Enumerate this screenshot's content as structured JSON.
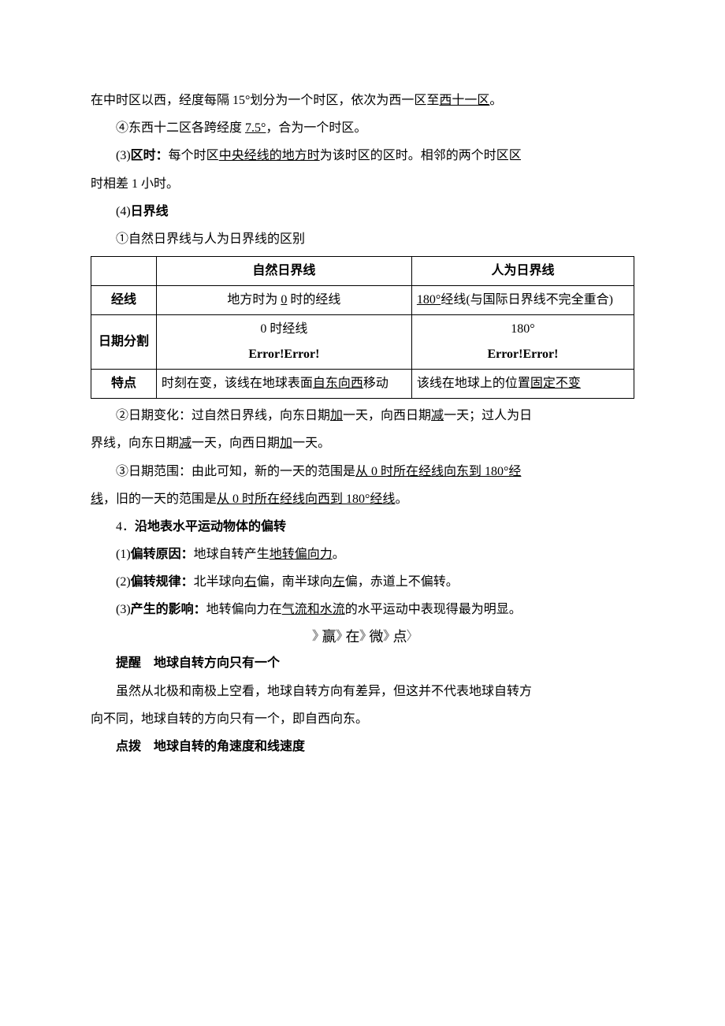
{
  "p1": {
    "pre": "在中时区以西，经度每隔 15°划分为一个时区，依次为西一区至",
    "u1": "西十一区",
    "post": "。"
  },
  "p2": {
    "pre": "④东西十二区各跨经度 ",
    "u1": "7.5°",
    "post": "，合为一个时区。"
  },
  "p3": {
    "pre": "(3)",
    "b": "区时：",
    "mid": "每个时区",
    "u1": "中央经线的地方时",
    "post": "为该时区的区时。相邻的两个时区区"
  },
  "p3b": "时相差 1 小时。",
  "p4": {
    "pre": "(4)",
    "b": "日界线"
  },
  "p5": "①自然日界线与人为日界线的区别",
  "table": {
    "c1": "",
    "c2": "自然日界线",
    "c3": "人为日界线",
    "r1h": "经线",
    "r1c2_pre": "地方时为 ",
    "r1c2_u": "0",
    "r1c2_post": " 时的经线",
    "r1c3_u": "180°",
    "r1c3_post": "经线(与国际日界线不完全重合)",
    "r2h": "日期分割",
    "r2c2a": "0 时经线",
    "r2c2b": "Error!Error!",
    "r2c3a": "180°",
    "r2c3b": "Error!Error!",
    "r3h": "特点",
    "r3c2_pre": "时刻在变，该线在地球表面",
    "r3c2_u": "自东向西",
    "r3c2_post": "移动",
    "r3c3_pre": "该线在地球上的位置",
    "r3c3_u": "固定不变"
  },
  "p6": {
    "pre": "②日期变化：过自然日界线，向东日期",
    "u1": "加",
    "mid1": "一天，向西日期",
    "u2": "减",
    "mid2": "一天；过人为日"
  },
  "p6b": {
    "pre": "界线，向东日期",
    "u1": "减",
    "mid": "一天，向西日期",
    "u2": "加",
    "post": "一天。"
  },
  "p7": {
    "pre": "③日期范围：由此可知，新的一天的范围是",
    "u1": "从 0 时所在经线向东到 180°经"
  },
  "p7b": {
    "u1": "线",
    "mid": "，旧的一天的范围是",
    "u2": "从 0 时所在经线向西到 180°经线",
    "post": "。"
  },
  "p8": {
    "pre": "4．",
    "b": "沿地表水平运动物体的偏转"
  },
  "p9": {
    "pre": "(1)",
    "b": "偏转原因：",
    "mid": "地球自转产生",
    "u1": "地转偏向力",
    "post": "。"
  },
  "p10": {
    "pre": "(2)",
    "b": "偏转规律：",
    "mid": "北半球向",
    "u1": "右",
    "mid2": "偏，南半球向",
    "u2": "左",
    "post": "偏，赤道上不偏转。"
  },
  "p11": {
    "pre": "(3)",
    "b": "产生的影响：",
    "mid": "地转偏向力在",
    "u1": "气流和水流",
    "post": "的水平运动中表现得最为明显。"
  },
  "banner": {
    "a": "赢",
    "b": "在",
    "c": "微",
    "d": "点"
  },
  "p12": {
    "b1": "提醒",
    "sp": "　",
    "b2": "地球自转方向只有一个"
  },
  "p13": "虽然从北极和南极上空看，地球自转方向有差异，但这并不代表地球自转方",
  "p13b": "向不同，地球自转的方向只有一个，即自西向东。",
  "p14": {
    "b1": "点拨",
    "sp": "　",
    "b2": "地球自转的角速度和线速度"
  }
}
